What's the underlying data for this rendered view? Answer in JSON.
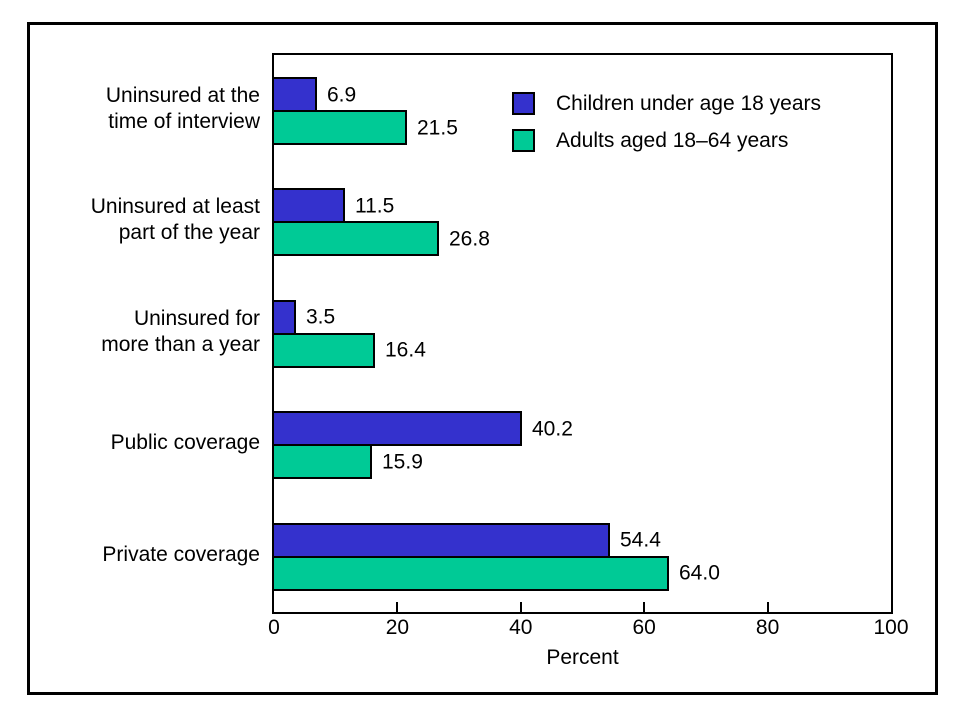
{
  "chart_data": {
    "type": "bar",
    "orientation": "horizontal",
    "categories": [
      "Uninsured at the\ntime of interview",
      "Uninsured at least\npart of the year",
      "Uninsured for\nmore than a year",
      "Public coverage",
      "Private coverage"
    ],
    "series": [
      {
        "name": "Children under age 18 years",
        "color": "#3431cd",
        "values": [
          6.9,
          11.5,
          3.5,
          40.2,
          54.4
        ],
        "labels": [
          "6.9",
          "11.5",
          "3.5",
          "40.2",
          "54.4"
        ]
      },
      {
        "name": "Adults aged 18–64 years",
        "color": "#00ca96",
        "values": [
          21.5,
          26.8,
          16.4,
          15.9,
          64.0
        ],
        "labels": [
          "21.5",
          "26.8",
          "16.4",
          "15.9",
          "64.0"
        ]
      }
    ],
    "xlabel": "Percent",
    "xlim": [
      0,
      100
    ],
    "xticks": [
      0,
      20,
      40,
      60,
      80,
      100
    ],
    "grid": false,
    "legend_position": "top-right-inside",
    "value_labels_shown": true,
    "bar_border_color": "#000000",
    "frame_color": "#000000",
    "background_color": "#ffffff"
  }
}
